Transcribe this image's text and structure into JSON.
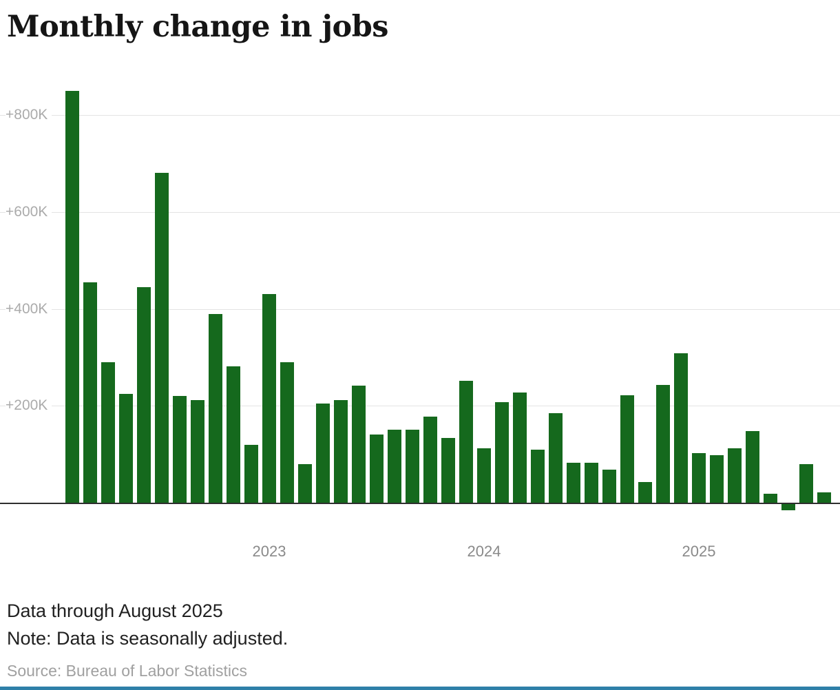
{
  "title": "Monthly change in jobs",
  "footer": {
    "data_through": "Data through August 2025",
    "note": "Note: Data is seasonally adjusted.",
    "source": "Source: Bureau of Labor Statistics"
  },
  "colors": {
    "bar": "#15691d",
    "gridline": "#e3e3e3",
    "baseline": "#2e2e2e",
    "accent_bottom_bar": "#2e7fa8",
    "ytick_text": "#ababab",
    "year_text": "#8a8a8a"
  },
  "chart_data": {
    "type": "bar",
    "title": "Monthly change in jobs",
    "unit": "thousands of jobs (K)",
    "grid": true,
    "ylim": [
      -60,
      900
    ],
    "x": [
      "Feb 2022",
      "Mar 2022",
      "Apr 2022",
      "May 2022",
      "Jun 2022",
      "Jul 2022",
      "Aug 2022",
      "Sep 2022",
      "Oct 2022",
      "Nov 2022",
      "Dec 2022",
      "Jan 2023",
      "Feb 2023",
      "Mar 2023",
      "Apr 2023",
      "May 2023",
      "Jun 2023",
      "Jul 2023",
      "Aug 2023",
      "Sep 2023",
      "Oct 2023",
      "Nov 2023",
      "Dec 2023",
      "Jan 2024",
      "Feb 2024",
      "Mar 2024",
      "Apr 2024",
      "May 2024",
      "Jun 2024",
      "Jul 2024",
      "Aug 2024",
      "Sep 2024",
      "Oct 2024",
      "Nov 2024",
      "Dec 2024",
      "Jan 2025",
      "Feb 2025",
      "Mar 2025",
      "Apr 2025",
      "May 2025",
      "Jun 2025",
      "Jul 2025",
      "Aug 2025"
    ],
    "values": [
      850,
      455,
      290,
      225,
      445,
      680,
      220,
      212,
      390,
      282,
      120,
      430,
      290,
      80,
      205,
      212,
      242,
      140,
      150,
      150,
      178,
      133,
      252,
      112,
      208,
      228,
      110,
      185,
      83,
      83,
      68,
      222,
      42,
      243,
      308,
      103,
      98,
      112,
      148,
      19,
      -13,
      79,
      22
    ],
    "y_ticks": [
      {
        "value": 200,
        "label": "+200K"
      },
      {
        "value": 400,
        "label": "+400K"
      },
      {
        "value": 600,
        "label": "+600K"
      },
      {
        "value": 800,
        "label": "+800K"
      }
    ],
    "x_year_labels": [
      {
        "label": "2023",
        "month": "Jan 2023"
      },
      {
        "label": "2024",
        "month": "Jan 2024"
      },
      {
        "label": "2025",
        "month": "Jan 2025"
      }
    ]
  }
}
